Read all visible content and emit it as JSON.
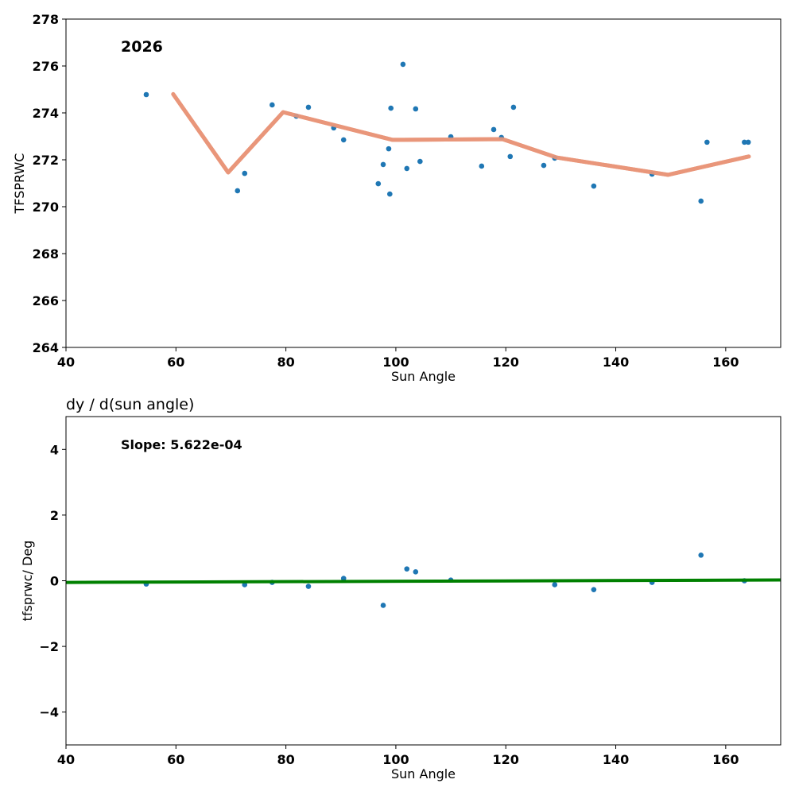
{
  "chart_data": [
    {
      "type": "scatter",
      "title": "",
      "annotation": "2026",
      "xlabel": "Sun Angle",
      "ylabel": "TFSPRWC",
      "xlim": [
        40,
        170
      ],
      "ylim": [
        264,
        278
      ],
      "xticks": [
        40,
        60,
        80,
        100,
        120,
        140,
        160
      ],
      "yticks": [
        264,
        266,
        268,
        270,
        272,
        274,
        276,
        278
      ],
      "grid": false,
      "point_color": "#1f77b4",
      "line_color": "#e9967a",
      "points": {
        "x": [
          54.6,
          71.2,
          72.5,
          77.5,
          81.9,
          84.1,
          88.7,
          90.5,
          96.8,
          97.7,
          98.7,
          98.9,
          99.1,
          101.3,
          102.0,
          103.6,
          104.4,
          110.0,
          115.6,
          117.8,
          119.2,
          120.8,
          121.4,
          126.9,
          128.9,
          136.0,
          146.6,
          155.5,
          156.6,
          163.4,
          164.1
        ],
        "y": [
          274.78,
          270.68,
          271.42,
          274.34,
          273.86,
          274.24,
          273.36,
          272.85,
          270.98,
          271.8,
          272.47,
          270.54,
          274.2,
          276.07,
          271.63,
          274.17,
          271.93,
          272.98,
          271.73,
          273.29,
          272.95,
          272.14,
          274.24,
          271.76,
          272.07,
          270.88,
          271.39,
          270.24,
          272.75,
          272.75,
          272.75
        ]
      },
      "line": {
        "x": [
          59.5,
          69.5,
          79.5,
          99.4,
          119.4,
          129.2,
          149.5,
          164.2
        ],
        "y": [
          274.8,
          271.46,
          274.03,
          272.85,
          272.88,
          272.1,
          271.36,
          272.14
        ]
      }
    },
    {
      "type": "scatter",
      "title": "dy / d(sun angle)",
      "annotation": "Slope: 5.622e-04",
      "xlabel": "Sun Angle",
      "ylabel": "tfsprwc/ Deg",
      "xlim": [
        40,
        170
      ],
      "ylim": [
        -5,
        5
      ],
      "xticks": [
        40,
        60,
        80,
        100,
        120,
        140,
        160
      ],
      "yticks": [
        -4,
        -2,
        0,
        2,
        4
      ],
      "ytick_labels": [
        "−4",
        "−2",
        "0",
        "2",
        "4"
      ],
      "grid": false,
      "point_color": "#1f77b4",
      "line_color": "#008000",
      "points": {
        "x": [
          54.6,
          72.5,
          77.5,
          84.1,
          90.5,
          97.7,
          102.0,
          103.6,
          110.0,
          128.9,
          136.0,
          146.6,
          155.5,
          163.4
        ],
        "y": [
          -0.1,
          -0.12,
          -0.05,
          -0.17,
          0.07,
          -0.75,
          0.36,
          0.27,
          0.02,
          -0.12,
          -0.27,
          -0.05,
          0.78,
          0.0
        ]
      },
      "fit": {
        "slope": 0.0005622,
        "intercept": -0.0725
      }
    }
  ]
}
